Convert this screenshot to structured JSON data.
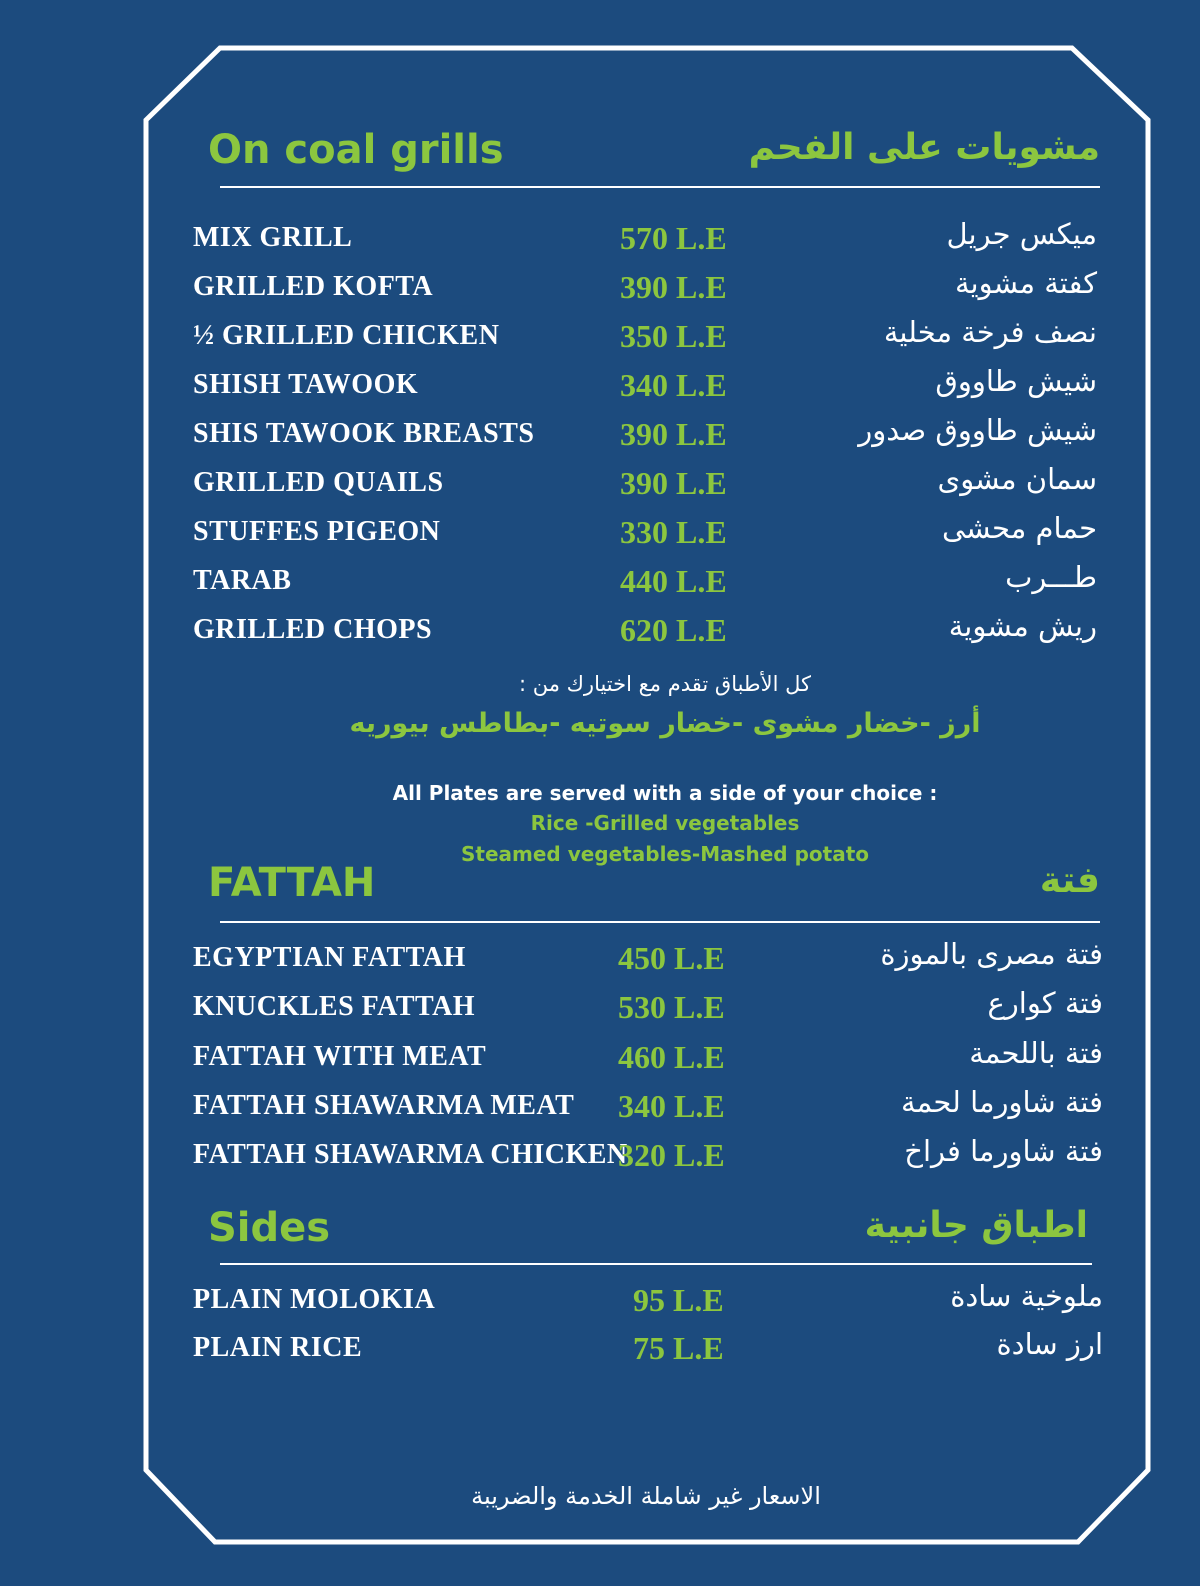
{
  "sections": [
    {
      "title_en": "On coal grills",
      "title_ar": "مشويات على الفحم",
      "items": [
        {
          "en": "MIX GRILL",
          "price": "570 L.E",
          "ar": "ميكس جريل"
        },
        {
          "en": "GRILLED KOFTA",
          "price": "390 L.E",
          "ar": "كفتة مشوية"
        },
        {
          "en": "½ GRILLED CHICKEN",
          "price": "350 L.E",
          "ar": "نصف فرخة مخلية"
        },
        {
          "en": "SHISH TAWOOK",
          "price": "340 L.E",
          "ar": "شيش طاووق"
        },
        {
          "en": "SHIS TAWOOK BREASTS",
          "price": "390 L.E",
          "ar": "شيش طاووق صدور"
        },
        {
          "en": "GRILLED QUAILS",
          "price": "390 L.E",
          "ar": "سمان مشوى"
        },
        {
          "en": "STUFFES PIGEON",
          "price": "330 L.E",
          "ar": "حمام محشى"
        },
        {
          "en": "TARAB",
          "price": "440 L.E",
          "ar": "طـــرب"
        },
        {
          "en": "GRILLED CHOPS",
          "price": "620 L.E",
          "ar": "ريش مشوية"
        }
      ]
    },
    {
      "title_en": "FATTAH",
      "title_ar": "فتة",
      "items": [
        {
          "en": "EGYPTIAN FATTAH",
          "price": "450 L.E",
          "ar": "فتة مصرى بالموزة"
        },
        {
          "en": "KNUCKLES FATTAH",
          "price": "530 L.E",
          "ar": "فتة كوارع"
        },
        {
          "en": "FATTAH WITH MEAT",
          "price": "460 L.E",
          "ar": "فتة باللحمة"
        },
        {
          "en": "FATTAH SHAWARMA MEAT",
          "price": "340 L.E",
          "ar": "فتة شاورما لحمة"
        },
        {
          "en": "FATTAH SHAWARMA CHICKEN",
          "price": "320 L.E",
          "ar": "فتة شاورما فراخ"
        }
      ]
    },
    {
      "title_en": "Sides",
      "title_ar": "اطباق جانبية",
      "items": [
        {
          "en": "PLAIN MOLOKIA",
          "price": "95 L.E",
          "ar": "ملوخية سادة"
        },
        {
          "en": "PLAIN RICE",
          "price": "75 L.E",
          "ar": "ارز سادة"
        }
      ]
    }
  ],
  "note": {
    "ar_intro": "كل الأطباق تقدم مع اختيارك من :",
    "ar_options": "أرز -خضار مشوى -خضار سوتيه -بطاطس بيوريه",
    "en_intro": "All Plates are served with a side of your choice :",
    "en_options_1": "Rice -Grilled vegetables",
    "en_options_2": "Steamed vegetables-Mashed potato"
  },
  "footer": "الاسعار غير شاملة الخدمة والضريبة"
}
